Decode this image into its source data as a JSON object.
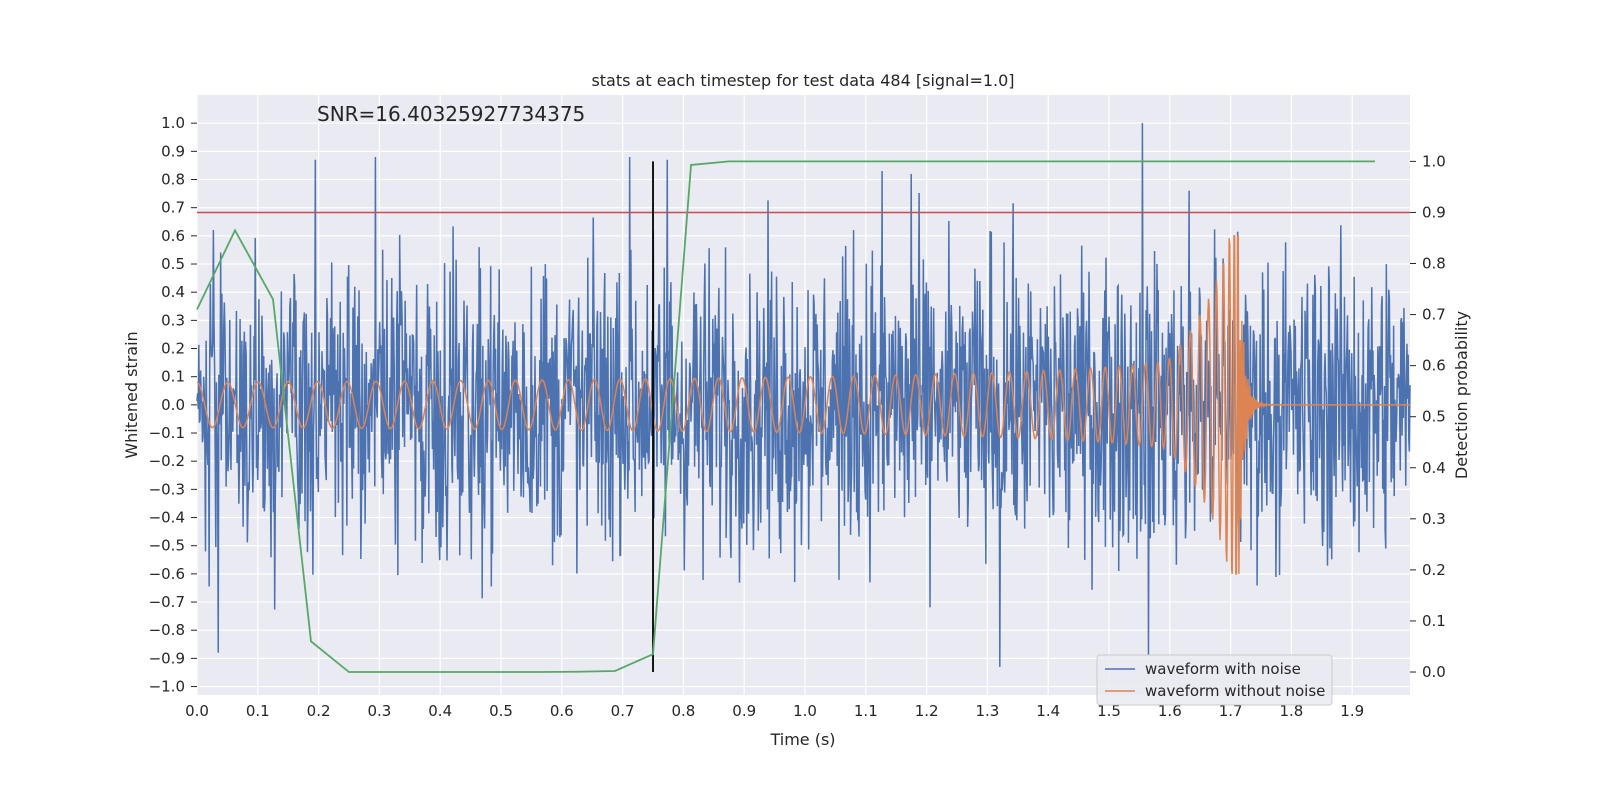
{
  "chart_data": {
    "type": "line",
    "title": "stats at each timestep for test data 484 [signal=1.0]",
    "xlabel": "Time (s)",
    "ylabel": "Whitened strain",
    "y2label": "Detection probability",
    "xlim": [
      0.0,
      1.995
    ],
    "ylim": [
      -1.03,
      1.1
    ],
    "y2lim": [
      -0.045,
      1.13
    ],
    "xticks": [
      "0.0",
      "0.1",
      "0.2",
      "0.3",
      "0.4",
      "0.5",
      "0.6",
      "0.7",
      "0.8",
      "0.9",
      "1.0",
      "1.1",
      "1.2",
      "1.3",
      "1.4",
      "1.5",
      "1.6",
      "1.7",
      "1.8",
      "1.9"
    ],
    "yticks": [
      "−1.0",
      "−0.9",
      "−0.8",
      "−0.7",
      "−0.6",
      "−0.5",
      "−0.4",
      "−0.3",
      "−0.2",
      "−0.1",
      "0.0",
      "0.1",
      "0.2",
      "0.3",
      "0.4",
      "0.5",
      "0.6",
      "0.7",
      "0.8",
      "0.9",
      "1.0"
    ],
    "y2ticks": [
      "0.0",
      "0.1",
      "0.2",
      "0.3",
      "0.4",
      "0.5",
      "0.6",
      "0.7",
      "0.8",
      "0.9",
      "1.0"
    ],
    "grid": true,
    "legend_position": "lower-right",
    "annotation": "SNR=16.40325927734375",
    "threshold_y2": 0.9,
    "vertical_line_x": 0.75,
    "series": [
      {
        "name": "waveform with noise",
        "axis": "left",
        "color": "#4c72b0",
        "description_of_values": "whitened noisy strain, approx. uniform noise in [-1, 1]",
        "sample_count": 2000,
        "peaks": [
          {
            "x": 0.195,
            "y": 0.87
          },
          {
            "x": 0.293,
            "y": 0.88
          },
          {
            "x": 0.712,
            "y": 0.88
          },
          {
            "x": 0.773,
            "y": 0.87
          },
          {
            "x": 1.127,
            "y": 0.83
          },
          {
            "x": 1.175,
            "y": 0.82
          },
          {
            "x": 1.555,
            "y": 1.0
          },
          {
            "x": 1.565,
            "y": -0.89
          },
          {
            "x": 1.32,
            "y": -0.93
          },
          {
            "x": 0.035,
            "y": -0.88
          }
        ]
      },
      {
        "name": "waveform without noise",
        "axis": "left",
        "color": "#dd8452",
        "description_of_values": "chirp signal with amplitude rising from ~0.08 to ~0.55 then ringdown near 1.72 s",
        "sample_count": 2000,
        "merger_time": 1.715
      },
      {
        "name": "detection probability",
        "axis": "right",
        "color": "#55a868",
        "x": [
          0.0,
          0.0625,
          0.125,
          0.1875,
          0.25,
          0.3125,
          0.375,
          0.4375,
          0.5,
          0.5625,
          0.625,
          0.6875,
          0.75,
          0.8125,
          0.875,
          0.9375,
          1.0,
          1.0625,
          1.125,
          1.1875,
          1.25,
          1.3125,
          1.375,
          1.4375,
          1.5,
          1.5625,
          1.625,
          1.6875,
          1.75,
          1.8125,
          1.875,
          1.9375
        ],
        "y": [
          0.71,
          0.865,
          0.73,
          0.06,
          0.0,
          0.0,
          0.0,
          0.0,
          0.0,
          0.0,
          0.0005,
          0.002,
          0.035,
          0.993,
          1.0,
          1.0,
          1.0,
          1.0,
          1.0,
          1.0,
          1.0,
          1.0,
          1.0,
          1.0,
          1.0,
          1.0,
          1.0,
          1.0,
          1.0,
          1.0,
          1.0,
          1.0
        ]
      }
    ],
    "colors": {
      "background": "#eaeaf2",
      "grid": "#ffffff",
      "threshold": "#c44e52",
      "vertical_line": "#000000",
      "text": "#262626"
    }
  }
}
